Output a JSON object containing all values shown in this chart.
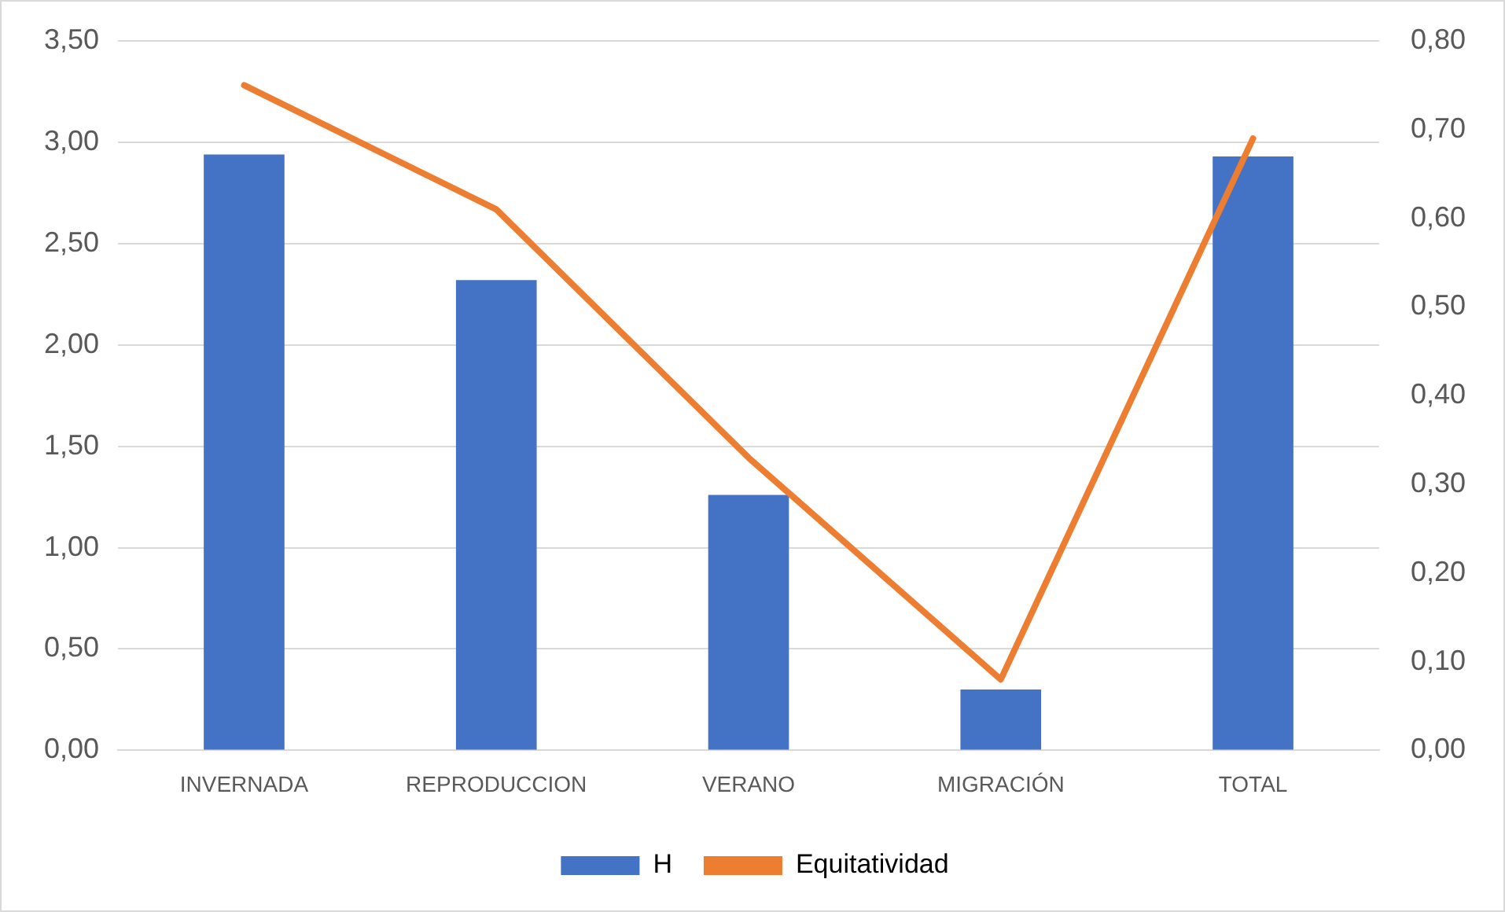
{
  "chart_data": {
    "type": "bar",
    "categories": [
      "INVERNADA",
      "REPRODUCCION",
      "VERANO",
      "MIGRACIÓN",
      "TOTAL"
    ],
    "series": [
      {
        "name": "H",
        "color": "#4472c4",
        "values": [
          2.94,
          2.32,
          1.26,
          0.3,
          2.93
        ]
      },
      {
        "name": "Equitatividad",
        "type": "line",
        "axis": "y2",
        "color": "#ed7d31",
        "values": [
          0.75,
          0.61,
          0.33,
          0.08,
          0.69
        ]
      }
    ],
    "ylim": [
      0,
      3.5
    ],
    "yticks": [
      {
        "value": 0,
        "label": "0,00"
      },
      {
        "value": 0.5,
        "label": "0,50"
      },
      {
        "value": 1,
        "label": "1,00"
      },
      {
        "value": 1.5,
        "label": "1,50"
      },
      {
        "value": 2,
        "label": "2,00"
      },
      {
        "value": 2.5,
        "label": "2,50"
      },
      {
        "value": 3,
        "label": "3,00"
      },
      {
        "value": 3.5,
        "label": "3,50"
      }
    ],
    "y2lim": [
      0,
      0.8
    ],
    "y2ticks": [
      {
        "value": 0,
        "label": "0,00"
      },
      {
        "value": 0.1,
        "label": "0,10"
      },
      {
        "value": 0.2,
        "label": "0,20"
      },
      {
        "value": 0.3,
        "label": "0,30"
      },
      {
        "value": 0.4,
        "label": "0,40"
      },
      {
        "value": 0.5,
        "label": "0,50"
      },
      {
        "value": 0.6,
        "label": "0,60"
      },
      {
        "value": 0.7,
        "label": "0,70"
      },
      {
        "value": 0.8,
        "label": "0,80"
      }
    ],
    "grid": "y",
    "legend": "bottom",
    "marker": "none",
    "line_style": "solid"
  }
}
